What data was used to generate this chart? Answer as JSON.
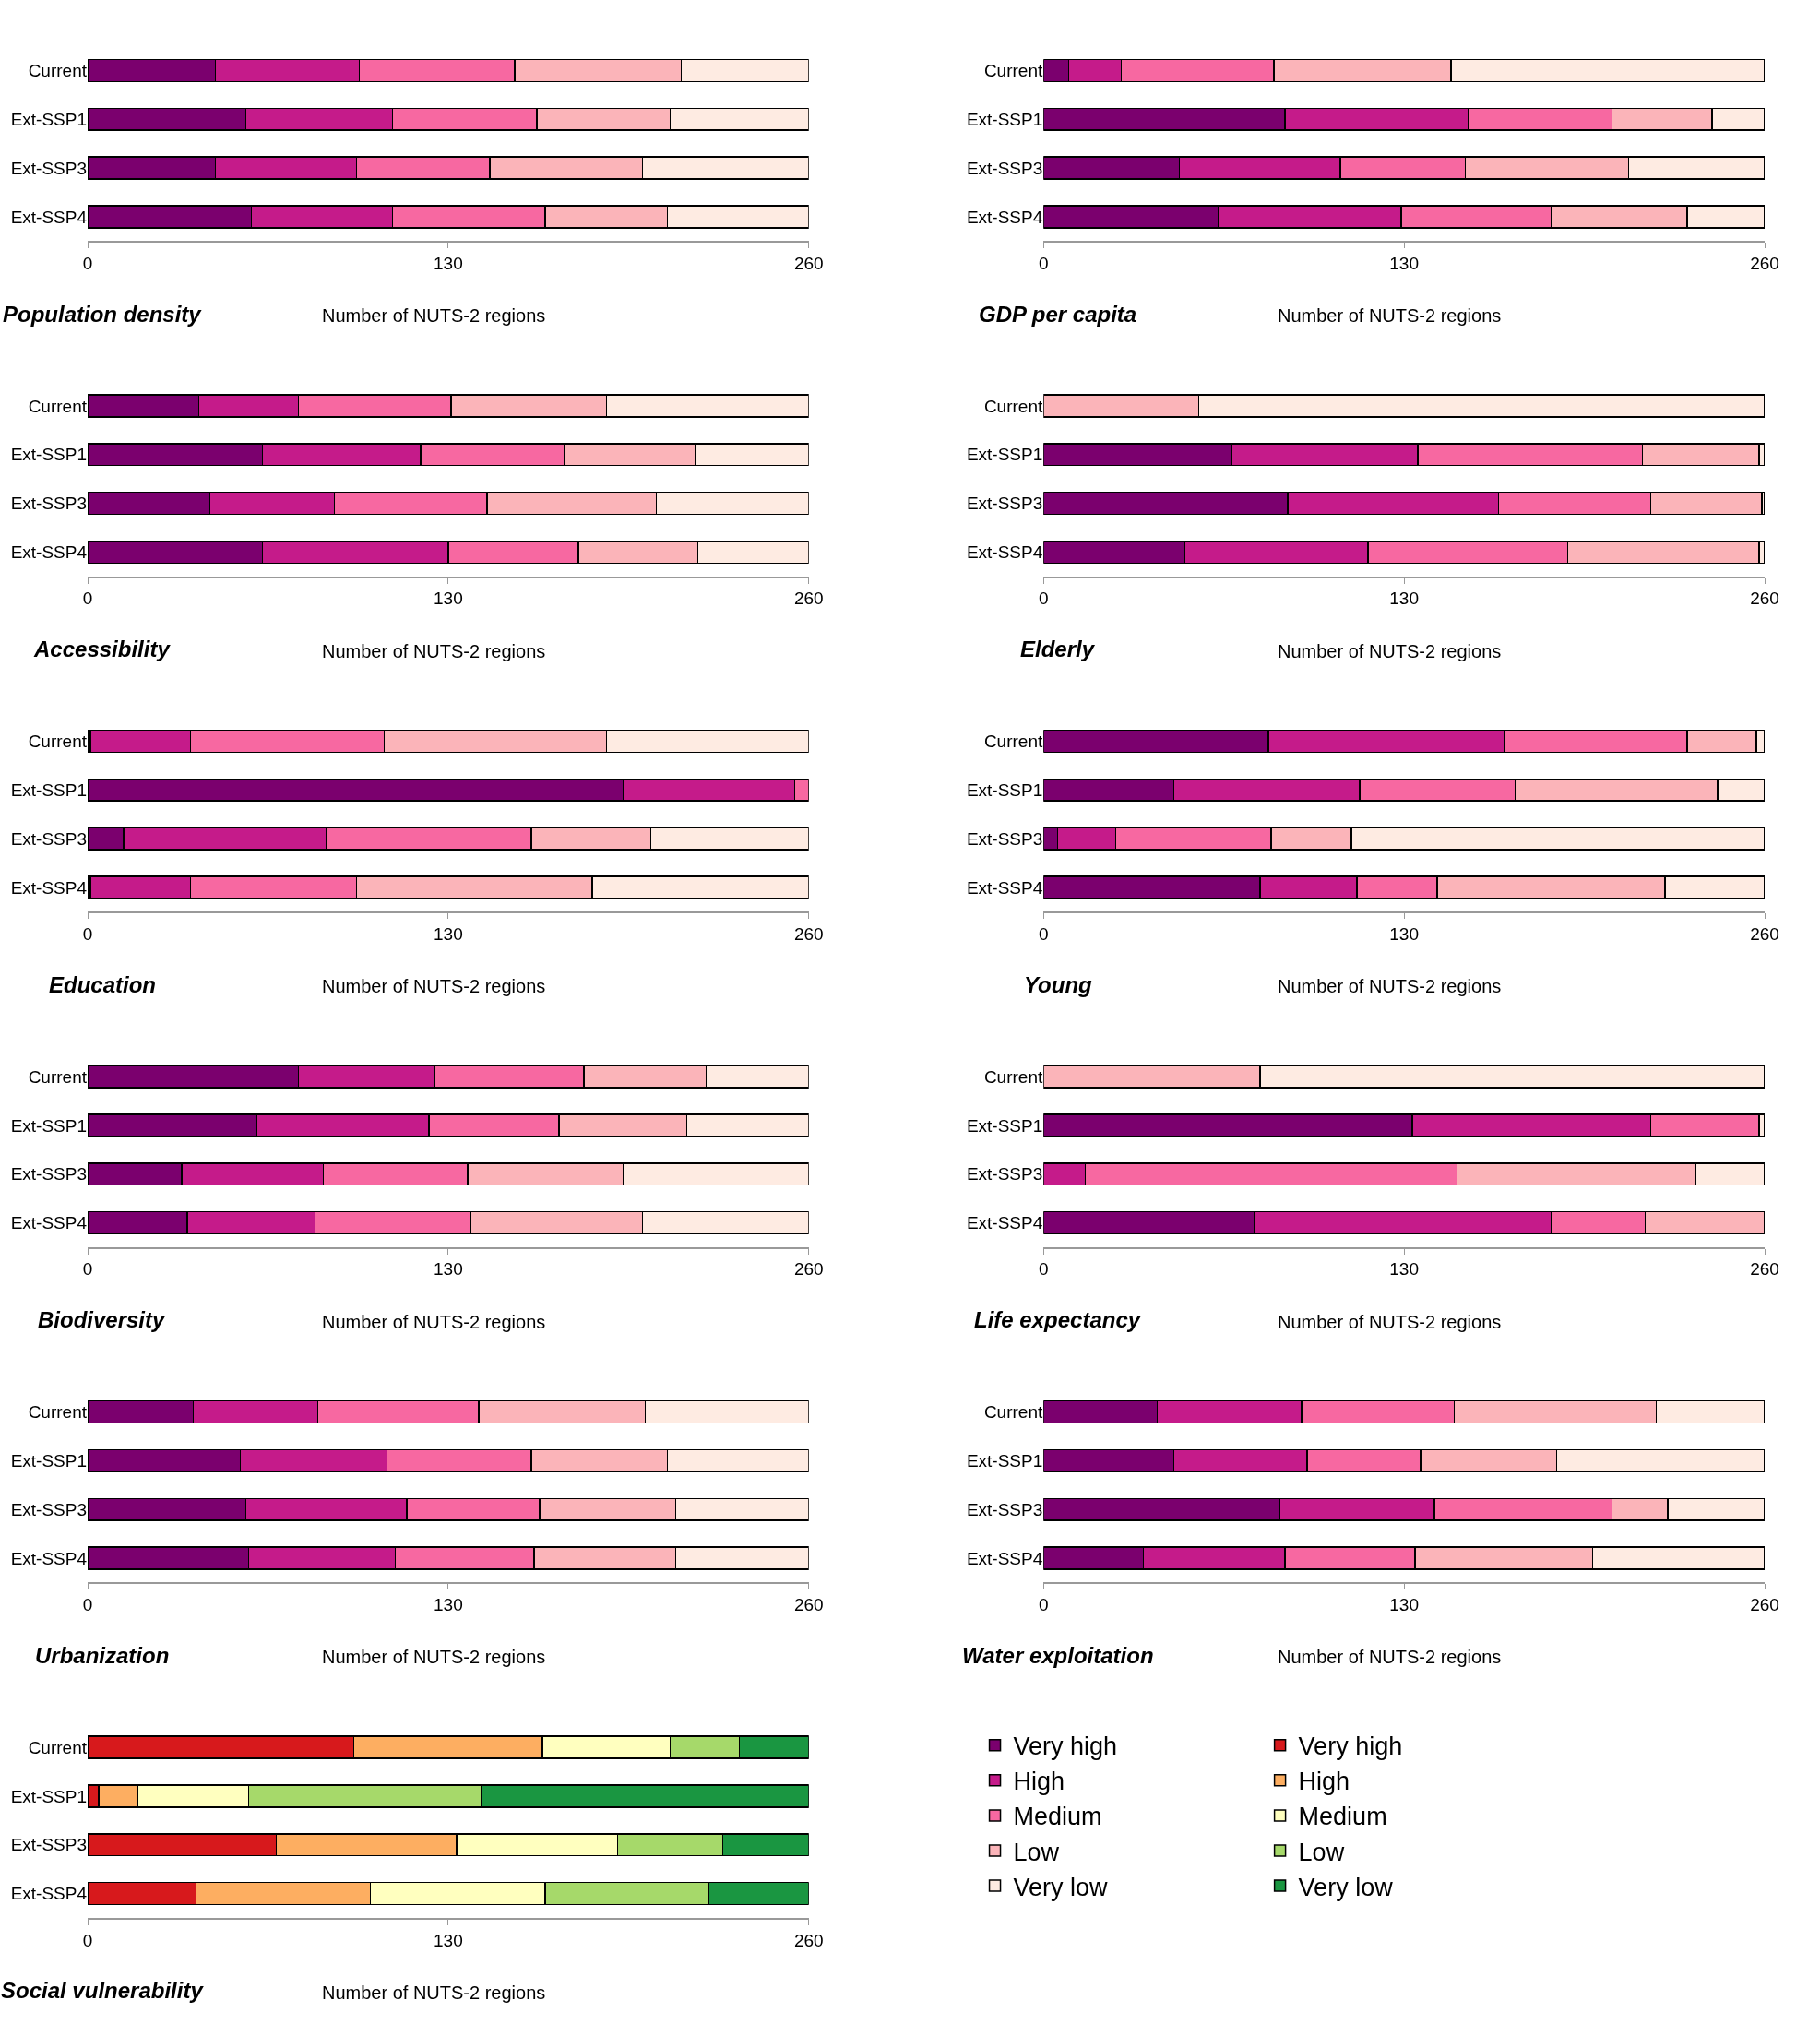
{
  "chart_data": [
    {
      "type": "bar",
      "orientation": "horizontal",
      "stacked": true,
      "title": "Population density",
      "xlabel": "Number of NUTS-2 regions",
      "categories": [
        "Current",
        "Ext-SSP1",
        "Ext-SSP3",
        "Ext-SSP4"
      ],
      "xlim": [
        0,
        260
      ],
      "xticks": [
        0,
        130,
        260
      ],
      "legend": "bottom right",
      "series": [
        {
          "name": "Very high",
          "color": "#7b006e",
          "values": [
            46,
            57,
            46,
            59
          ]
        },
        {
          "name": "High",
          "color": "#c51b8a",
          "values": [
            52,
            53,
            51,
            51
          ]
        },
        {
          "name": "Medium",
          "color": "#f768a1",
          "values": [
            56,
            52,
            48,
            55
          ]
        },
        {
          "name": "Low",
          "color": "#fbb4b9",
          "values": [
            60,
            48,
            55,
            44
          ]
        },
        {
          "name": "Very low",
          "color": "#feebe2",
          "values": [
            46,
            50,
            60,
            51
          ]
        }
      ]
    },
    {
      "type": "bar",
      "orientation": "horizontal",
      "stacked": true,
      "title": "GDP per capita",
      "xlabel": "Number of NUTS-2 regions",
      "categories": [
        "Current",
        "Ext-SSP1",
        "Ext-SSP3",
        "Ext-SSP4"
      ],
      "xlim": [
        0,
        260
      ],
      "xticks": [
        0,
        130,
        260
      ],
      "series": [
        {
          "color": "#7b006e",
          "values": [
            9,
            87,
            49,
            63
          ]
        },
        {
          "color": "#c51b8a",
          "values": [
            19,
            66,
            58,
            66
          ]
        },
        {
          "color": "#f768a1",
          "values": [
            55,
            52,
            45,
            54
          ]
        },
        {
          "color": "#fbb4b9",
          "values": [
            64,
            36,
            59,
            49
          ]
        },
        {
          "color": "#feebe2",
          "values": [
            113,
            19,
            49,
            28
          ]
        }
      ]
    },
    {
      "type": "bar",
      "orientation": "horizontal",
      "stacked": true,
      "title": "Accessibility",
      "xlabel": "Number of NUTS-2 regions",
      "categories": [
        "Current",
        "Ext-SSP1",
        "Ext-SSP3",
        "Ext-SSP4"
      ],
      "xlim": [
        0,
        260
      ],
      "xticks": [
        0,
        130,
        260
      ],
      "series": [
        {
          "color": "#7b006e",
          "values": [
            40,
            63,
            44,
            63
          ]
        },
        {
          "color": "#c51b8a",
          "values": [
            36,
            57,
            45,
            67
          ]
        },
        {
          "color": "#f768a1",
          "values": [
            55,
            52,
            55,
            47
          ]
        },
        {
          "color": "#fbb4b9",
          "values": [
            56,
            47,
            61,
            43
          ]
        },
        {
          "color": "#feebe2",
          "values": [
            73,
            41,
            55,
            40
          ]
        }
      ]
    },
    {
      "type": "bar",
      "orientation": "horizontal",
      "stacked": true,
      "title": "Elderly",
      "xlabel": "Number of NUTS-2 regions",
      "categories": [
        "Current",
        "Ext-SSP1",
        "Ext-SSP3",
        "Ext-SSP4"
      ],
      "xlim": [
        0,
        260
      ],
      "xticks": [
        0,
        130,
        260
      ],
      "series": [
        {
          "color": "#7b006e",
          "values": [
            0,
            68,
            88,
            51
          ]
        },
        {
          "color": "#c51b8a",
          "values": [
            0,
            67,
            76,
            66
          ]
        },
        {
          "color": "#f768a1",
          "values": [
            0,
            81,
            55,
            72
          ]
        },
        {
          "color": "#fbb4b9",
          "values": [
            56,
            42,
            40,
            69
          ]
        },
        {
          "color": "#feebe2",
          "values": [
            204,
            2,
            1,
            2
          ]
        }
      ]
    },
    {
      "type": "bar",
      "orientation": "horizontal",
      "stacked": true,
      "title": "Education",
      "xlabel": "Number of NUTS-2 regions",
      "categories": [
        "Current",
        "Ext-SSP1",
        "Ext-SSP3",
        "Ext-SSP4"
      ],
      "xlim": [
        0,
        260
      ],
      "xticks": [
        0,
        130,
        260
      ],
      "series": [
        {
          "color": "#7b006e",
          "values": [
            1,
            193,
            13,
            1
          ]
        },
        {
          "color": "#c51b8a",
          "values": [
            36,
            62,
            73,
            36
          ]
        },
        {
          "color": "#f768a1",
          "values": [
            70,
            5,
            74,
            60
          ]
        },
        {
          "color": "#fbb4b9",
          "values": [
            80,
            0,
            43,
            85
          ]
        },
        {
          "color": "#feebe2",
          "values": [
            73,
            0,
            57,
            78
          ]
        }
      ]
    },
    {
      "type": "bar",
      "orientation": "horizontal",
      "stacked": true,
      "title": "Young",
      "xlabel": "Number of NUTS-2 regions",
      "categories": [
        "Current",
        "Ext-SSP1",
        "Ext-SSP3",
        "Ext-SSP4"
      ],
      "xlim": [
        0,
        260
      ],
      "xticks": [
        0,
        130,
        260
      ],
      "series": [
        {
          "color": "#7b006e",
          "values": [
            81,
            47,
            5,
            78
          ]
        },
        {
          "color": "#c51b8a",
          "values": [
            85,
            67,
            21,
            35
          ]
        },
        {
          "color": "#f768a1",
          "values": [
            66,
            56,
            56,
            29
          ]
        },
        {
          "color": "#fbb4b9",
          "values": [
            25,
            73,
            29,
            82
          ]
        },
        {
          "color": "#feebe2",
          "values": [
            3,
            17,
            149,
            36
          ]
        }
      ]
    },
    {
      "type": "bar",
      "orientation": "horizontal",
      "stacked": true,
      "title": "Biodiversity",
      "xlabel": "Number of NUTS-2 regions",
      "categories": [
        "Current",
        "Ext-SSP1",
        "Ext-SSP3",
        "Ext-SSP4"
      ],
      "xlim": [
        0,
        260
      ],
      "xticks": [
        0,
        130,
        260
      ],
      "series": [
        {
          "color": "#7b006e",
          "values": [
            76,
            61,
            34,
            36
          ]
        },
        {
          "color": "#c51b8a",
          "values": [
            49,
            62,
            51,
            46
          ]
        },
        {
          "color": "#f768a1",
          "values": [
            54,
            47,
            52,
            56
          ]
        },
        {
          "color": "#fbb4b9",
          "values": [
            44,
            46,
            56,
            62
          ]
        },
        {
          "color": "#feebe2",
          "values": [
            37,
            44,
            67,
            60
          ]
        }
      ]
    },
    {
      "type": "bar",
      "orientation": "horizontal",
      "stacked": true,
      "title": "Life expectancy",
      "xlabel": "Number of NUTS-2 regions",
      "categories": [
        "Current",
        "Ext-SSP1",
        "Ext-SSP3",
        "Ext-SSP4"
      ],
      "xlim": [
        0,
        260
      ],
      "xticks": [
        0,
        130,
        260
      ],
      "series": [
        {
          "color": "#7b006e",
          "values": [
            0,
            133,
            0,
            76
          ]
        },
        {
          "color": "#c51b8a",
          "values": [
            0,
            86,
            15,
            107
          ]
        },
        {
          "color": "#f768a1",
          "values": [
            0,
            39,
            134,
            34
          ]
        },
        {
          "color": "#fbb4b9",
          "values": [
            78,
            0,
            86,
            43
          ]
        },
        {
          "color": "#feebe2",
          "values": [
            182,
            2,
            25,
            0
          ]
        }
      ]
    },
    {
      "type": "bar",
      "orientation": "horizontal",
      "stacked": true,
      "title": "Urbanization",
      "xlabel": "Number of NUTS-2 regions",
      "categories": [
        "Current",
        "Ext-SSP1",
        "Ext-SSP3",
        "Ext-SSP4"
      ],
      "xlim": [
        0,
        260
      ],
      "xticks": [
        0,
        130,
        260
      ],
      "series": [
        {
          "color": "#7b006e",
          "values": [
            38,
            55,
            57,
            58
          ]
        },
        {
          "color": "#c51b8a",
          "values": [
            45,
            53,
            58,
            53
          ]
        },
        {
          "color": "#f768a1",
          "values": [
            58,
            52,
            48,
            50
          ]
        },
        {
          "color": "#fbb4b9",
          "values": [
            60,
            49,
            49,
            51
          ]
        },
        {
          "color": "#feebe2",
          "values": [
            59,
            51,
            48,
            48
          ]
        }
      ]
    },
    {
      "type": "bar",
      "orientation": "horizontal",
      "stacked": true,
      "title": "Water exploitation",
      "xlabel": "Number of NUTS-2 regions",
      "categories": [
        "Current",
        "Ext-SSP1",
        "Ext-SSP3",
        "Ext-SSP4"
      ],
      "xlim": [
        0,
        260
      ],
      "xticks": [
        0,
        130,
        260
      ],
      "series": [
        {
          "color": "#7b006e",
          "values": [
            41,
            47,
            85,
            36
          ]
        },
        {
          "color": "#c51b8a",
          "values": [
            52,
            48,
            56,
            51
          ]
        },
        {
          "color": "#f768a1",
          "values": [
            55,
            41,
            64,
            47
          ]
        },
        {
          "color": "#fbb4b9",
          "values": [
            73,
            49,
            20,
            64
          ]
        },
        {
          "color": "#feebe2",
          "values": [
            39,
            75,
            35,
            62
          ]
        }
      ]
    },
    {
      "type": "bar",
      "orientation": "horizontal",
      "stacked": true,
      "title": "Social vulnerability",
      "xlabel": "Number of NUTS-2 regions",
      "categories": [
        "Current",
        "Ext-SSP1",
        "Ext-SSP3",
        "Ext-SSP4"
      ],
      "xlim": [
        0,
        260
      ],
      "xticks": [
        0,
        130,
        260
      ],
      "legend": "right",
      "series": [
        {
          "name": "Very high",
          "color": "#d7191c",
          "values": [
            96,
            4,
            68,
            39
          ]
        },
        {
          "name": "High",
          "color": "#fdae61",
          "values": [
            68,
            14,
            65,
            63
          ]
        },
        {
          "name": "Medium",
          "color": "#ffffbf",
          "values": [
            46,
            40,
            58,
            63
          ]
        },
        {
          "name": "Low",
          "color": "#a6d96a",
          "values": [
            25,
            84,
            38,
            59
          ]
        },
        {
          "name": "Very low",
          "color": "#1a9641",
          "values": [
            25,
            118,
            31,
            36
          ]
        }
      ]
    }
  ]
}
